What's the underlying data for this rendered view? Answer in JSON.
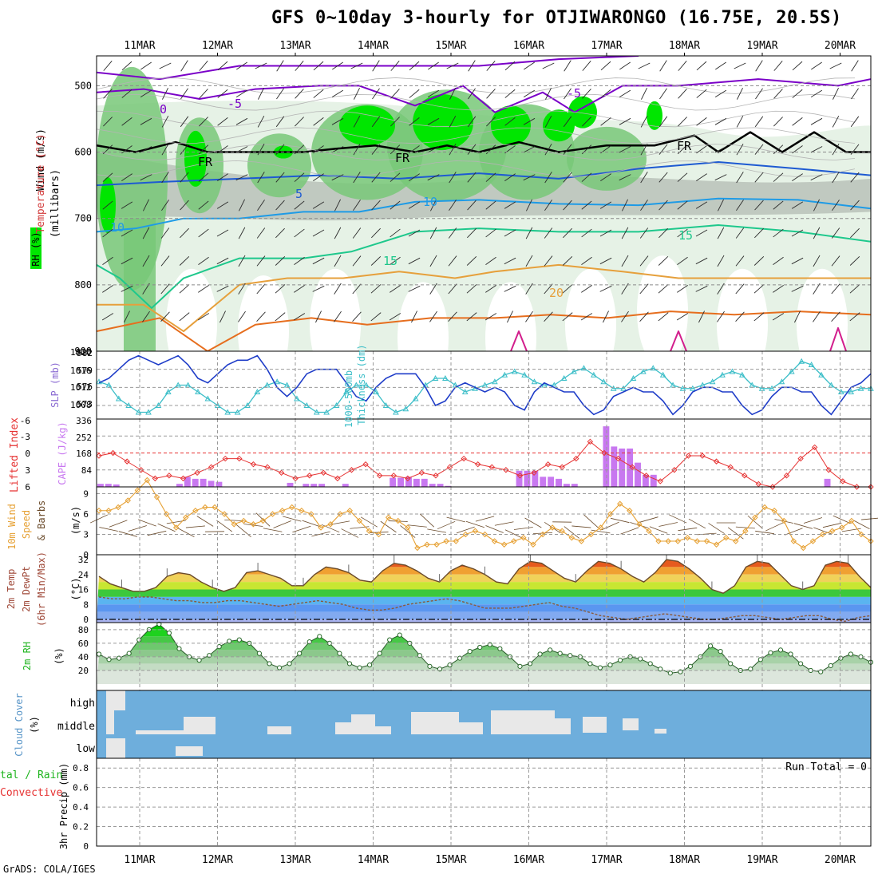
{
  "title": "GFS 0~10day 3-hourly for OTJIWARONGO (16.75E, 20.5S)",
  "footer": "GrADS: COLA/IGES",
  "dates": [
    "11MAR",
    "12MAR",
    "13MAR",
    "14MAR",
    "15MAR",
    "16MAR",
    "17MAR",
    "18MAR",
    "19MAR",
    "20MAR"
  ],
  "colors": {
    "rh_dark": "#00e600",
    "rh_mid": "#78c878",
    "rh_light": "#e6f2e6",
    "rh_grey": "#a0a8a0",
    "temp_purple": "#7a00c8",
    "temp_blue": "#1e5ad2",
    "temp_cyan": "#1e9be6",
    "temp_green": "#1ec88c",
    "temp_orange": "#e6a03c",
    "temp_darkorange": "#e66e1e",
    "temp_magenta": "#d21e8c",
    "slp_line": "#1e3cc8",
    "thickness_line": "#3cbec8",
    "cape_bar": "#c878f0",
    "li_line": "#e63232",
    "wind_line": "#e6a032",
    "cloud_bg": "#6eaedc",
    "cloud_fill": "#e8e8e8"
  },
  "panels": {
    "upper_air": {
      "ylabel": "(millibars)",
      "side_labels": [
        "Wind (m/s)",
        "Temperature (°C)",
        "RH (%)"
      ],
      "yticks": [
        "500",
        "600",
        "700",
        "800",
        "900"
      ],
      "contour_labels": [
        "-5",
        "0",
        "-5",
        "5",
        "10",
        "10",
        "15",
        "15",
        "20",
        "FR",
        "FR",
        "FR"
      ]
    },
    "slp": {
      "labels": [
        "1000-500mb",
        "Thickness (dm)",
        "SLP (mb)"
      ],
      "left_ticks": [
        "582",
        "579",
        "576",
        "573"
      ],
      "right_ticks": [
        "1020",
        "1016",
        "1012",
        "1008"
      ]
    },
    "cape": {
      "labels": [
        "Lifted Index",
        "CAPE (J/kg)"
      ],
      "left_ticks": [
        "-6",
        "-3",
        "0",
        "3",
        "6"
      ],
      "right_ticks": [
        "336",
        "252",
        "168",
        "84"
      ]
    },
    "wind10m": {
      "labels": [
        "10m Wind",
        "Speed",
        "& Barbs",
        "(m/s)"
      ],
      "yticks": [
        "9",
        "6",
        "3",
        "0"
      ]
    },
    "temp2m": {
      "labels": [
        "2m Temp",
        "2m DewPt",
        "(6hr Min/Max)",
        "(°C)"
      ],
      "yticks": [
        "32",
        "24",
        "16",
        "8",
        "0"
      ]
    },
    "rh2m": {
      "labels": [
        "2m RH",
        "(%)"
      ],
      "yticks": [
        "80",
        "60",
        "40",
        "20"
      ]
    },
    "cloud": {
      "labels": [
        "Cloud Cover",
        "(%)"
      ],
      "levels": [
        "high",
        "middle",
        "low"
      ]
    },
    "precip": {
      "labels": [
        "tal / Rain",
        "Convective",
        "3hr Precip (mm)"
      ],
      "yticks": [
        "0.8",
        "0.6",
        "0.4",
        "0.2",
        "0"
      ],
      "run_total": "Run Total = 0"
    }
  },
  "chart_data": [
    {
      "type": "line",
      "name": "SLP (mb)",
      "x": [
        "10MAR12",
        "10MAR15",
        "10MAR18",
        "10MAR21",
        "11MAR00",
        "11MAR03",
        "11MAR06",
        "11MAR09",
        "11MAR12",
        "11MAR15",
        "11MAR18",
        "11MAR21",
        "12MAR00",
        "12MAR03",
        "12MAR06",
        "12MAR09",
        "12MAR12",
        "12MAR15",
        "12MAR18",
        "12MAR21",
        "13MAR00",
        "13MAR03",
        "13MAR06",
        "13MAR09",
        "13MAR12",
        "13MAR15",
        "13MAR18",
        "13MAR21",
        "14MAR00",
        "14MAR03",
        "14MAR06",
        "14MAR09",
        "14MAR12",
        "14MAR15",
        "14MAR18",
        "14MAR21",
        "15MAR00",
        "15MAR03",
        "15MAR06",
        "15MAR09",
        "15MAR12",
        "15MAR15",
        "15MAR18",
        "15MAR21",
        "16MAR00",
        "16MAR03",
        "16MAR06",
        "16MAR09",
        "16MAR12",
        "16MAR15",
        "16MAR18",
        "16MAR21",
        "17MAR00",
        "17MAR03",
        "17MAR06",
        "17MAR09",
        "17MAR12",
        "17MAR15",
        "17MAR18",
        "17MAR21",
        "18MAR00",
        "18MAR03",
        "18MAR06",
        "18MAR09",
        "18MAR12",
        "18MAR15",
        "18MAR18",
        "18MAR21",
        "19MAR00",
        "19MAR03",
        "19MAR06",
        "19MAR09",
        "19MAR12",
        "19MAR15",
        "19MAR18",
        "19MAR21",
        "20MAR00",
        "20MAR03",
        "20MAR06"
      ],
      "values": [
        1013,
        1014,
        1016,
        1018,
        1019,
        1018,
        1017,
        1018,
        1019,
        1017,
        1014,
        1013,
        1015,
        1017,
        1018,
        1018,
        1019,
        1016,
        1012,
        1010,
        1012,
        1015,
        1016,
        1016,
        1016,
        1013,
        1010,
        1009,
        1012,
        1014,
        1015,
        1015,
        1015,
        1012,
        1008,
        1009,
        1012,
        1013,
        1012,
        1011,
        1012,
        1011,
        1008,
        1007,
        1011,
        1013,
        1012,
        1011,
        1011,
        1008,
        1006,
        1007,
        1010,
        1011,
        1012,
        1011,
        1011,
        1009,
        1006,
        1008,
        1011,
        1012,
        1012,
        1011,
        1011,
        1008,
        1006,
        1007,
        1010,
        1012,
        1012,
        1011,
        1011,
        1008,
        1006,
        1009,
        1012,
        1013,
        1015
      ],
      "ylim": [
        1005,
        1020
      ]
    },
    {
      "type": "line",
      "name": "1000-500mb Thickness (dm)",
      "x": "same as SLP",
      "values": [
        577.5,
        577,
        575,
        574,
        573,
        573,
        574,
        576,
        577,
        577,
        576,
        575,
        574,
        573,
        573,
        574,
        576,
        577,
        577.5,
        577,
        575,
        574,
        573,
        573,
        574,
        576,
        577,
        577,
        576,
        574,
        573,
        573.5,
        575,
        577,
        578,
        578,
        577,
        576,
        576.5,
        577,
        577.5,
        578.5,
        579,
        578.5,
        577.5,
        577,
        577,
        578,
        579,
        579.5,
        578.5,
        577.5,
        576.5,
        576.5,
        578,
        579,
        579.5,
        578.5,
        577,
        576.5,
        576.5,
        577,
        577.5,
        578.5,
        579,
        578.5,
        577,
        576.5,
        576.5,
        577.5,
        579,
        580.5,
        580,
        578.5,
        577,
        576,
        576,
        576.5,
        576.5
      ],
      "ylim": [
        572,
        582
      ]
    },
    {
      "type": "bar",
      "name": "CAPE (J/kg)",
      "values": [
        15,
        15,
        12,
        0,
        0,
        0,
        0,
        0,
        0,
        0,
        15,
        50,
        40,
        40,
        30,
        25,
        0,
        0,
        0,
        0,
        0,
        0,
        0,
        0,
        20,
        0,
        15,
        15,
        15,
        0,
        0,
        15,
        0,
        0,
        0,
        0,
        0,
        45,
        45,
        50,
        40,
        40,
        15,
        15,
        5,
        0,
        0,
        0,
        0,
        0,
        0,
        0,
        0,
        80,
        80,
        80,
        50,
        50,
        40,
        15,
        15,
        0,
        0,
        0,
        300,
        200,
        190,
        190,
        120,
        60,
        60,
        0,
        0,
        0,
        0,
        0,
        0,
        0,
        0,
        0,
        0,
        0,
        0,
        0,
        0,
        0,
        0,
        0,
        0,
        0,
        0,
        0,
        40,
        0,
        0,
        0,
        0,
        0
      ],
      "ylim": [
        0,
        336
      ]
    },
    {
      "type": "line",
      "name": "Lifted Index",
      "values": [
        0.5,
        0,
        1.5,
        3,
        4.5,
        4,
        4.5,
        3.5,
        2.5,
        1,
        1,
        2,
        2.5,
        3.5,
        4.5,
        4,
        3.5,
        4.5,
        3,
        2,
        4,
        4,
        4.5,
        3.5,
        4,
        2.5,
        1,
        2,
        2.5,
        3,
        4,
        3.5,
        2,
        2.5,
        1,
        -2,
        0,
        1,
        2.5,
        4,
        5,
        3,
        0.5,
        0.5,
        1.5,
        2.5,
        4,
        5.5,
        6,
        4,
        1,
        -1,
        3,
        5,
        6,
        6
      ],
      "ylim": [
        -6,
        6
      ]
    },
    {
      "type": "line",
      "name": "10m Wind Speed (m/s)",
      "values": [
        6.5,
        6.5,
        7,
        8,
        9.5,
        11,
        8.5,
        6,
        4,
        5.5,
        6.5,
        7,
        7,
        6,
        4.5,
        5,
        4.5,
        5,
        6,
        6.5,
        7,
        6.5,
        6,
        4,
        4.5,
        6,
        6.5,
        5,
        3.5,
        3,
        5.5,
        5,
        4,
        1,
        1.5,
        1.5,
        2,
        2,
        3,
        3.5,
        3,
        2,
        1.5,
        2,
        2.5,
        1.5,
        3,
        4,
        3.5,
        2.5,
        2,
        3,
        4,
        6,
        7.5,
        6.5,
        4.5,
        3.5,
        2,
        2,
        2,
        2.5,
        2,
        2,
        1.5,
        2.5,
        2,
        3.5,
        5.5,
        7,
        6.5,
        5,
        2,
        1,
        2,
        3,
        3.5,
        4,
        5,
        3,
        2
      ],
      "ylim": [
        0,
        10
      ]
    },
    {
      "type": "area",
      "name": "2m Temp (°C)",
      "values": [
        23,
        19,
        17,
        15,
        15,
        17,
        23,
        25,
        24,
        20,
        17,
        15,
        17,
        25,
        26,
        24,
        22,
        18,
        18,
        24,
        28,
        27,
        25,
        21,
        20,
        26,
        30,
        29,
        26,
        22,
        20,
        26,
        29,
        27,
        24,
        20,
        19,
        27,
        31,
        30,
        26,
        22,
        20,
        26,
        31,
        30,
        27,
        23,
        20,
        25,
        32,
        31,
        27,
        22,
        16,
        14,
        18,
        28,
        31,
        30,
        24,
        18,
        16,
        18,
        29,
        31,
        30,
        23,
        17
      ],
      "ylim": [
        0,
        32
      ]
    },
    {
      "type": "line",
      "name": "2m DewPt (°C)",
      "values": [
        12,
        11,
        11,
        12,
        12,
        11,
        10,
        10,
        9,
        9,
        10,
        10,
        9,
        8,
        7,
        8,
        9,
        10,
        9,
        8,
        6,
        5,
        5,
        6,
        8,
        9,
        10,
        11,
        10,
        8,
        6,
        6,
        6,
        7,
        8,
        9,
        7,
        6,
        4,
        2,
        1,
        0,
        1,
        2,
        3,
        2,
        1,
        0,
        0,
        1,
        2,
        2,
        1,
        0,
        1,
        2,
        2,
        0,
        -1,
        1,
        2
      ],
      "ylim": [
        0,
        32
      ]
    },
    {
      "type": "area",
      "name": "2m RH (%)",
      "values": [
        44,
        36,
        38,
        45,
        65,
        80,
        88,
        75,
        52,
        40,
        35,
        42,
        55,
        63,
        65,
        60,
        45,
        30,
        24,
        30,
        45,
        62,
        70,
        60,
        45,
        30,
        24,
        28,
        45,
        65,
        72,
        60,
        42,
        26,
        22,
        28,
        38,
        48,
        54,
        58,
        52,
        40,
        26,
        30,
        44,
        50,
        45,
        42,
        40,
        30,
        24,
        28,
        35,
        40,
        37,
        30,
        22,
        16,
        18,
        26,
        40,
        56,
        48,
        30,
        20,
        22,
        36,
        46,
        50,
        44,
        30,
        20,
        18,
        27,
        38,
        44,
        40,
        32
      ],
      "ylim": [
        0,
        90
      ]
    },
    {
      "type": "bar",
      "name": "3hr Precip (mm)",
      "values": [],
      "ylim": [
        0,
        0.9
      ]
    }
  ]
}
